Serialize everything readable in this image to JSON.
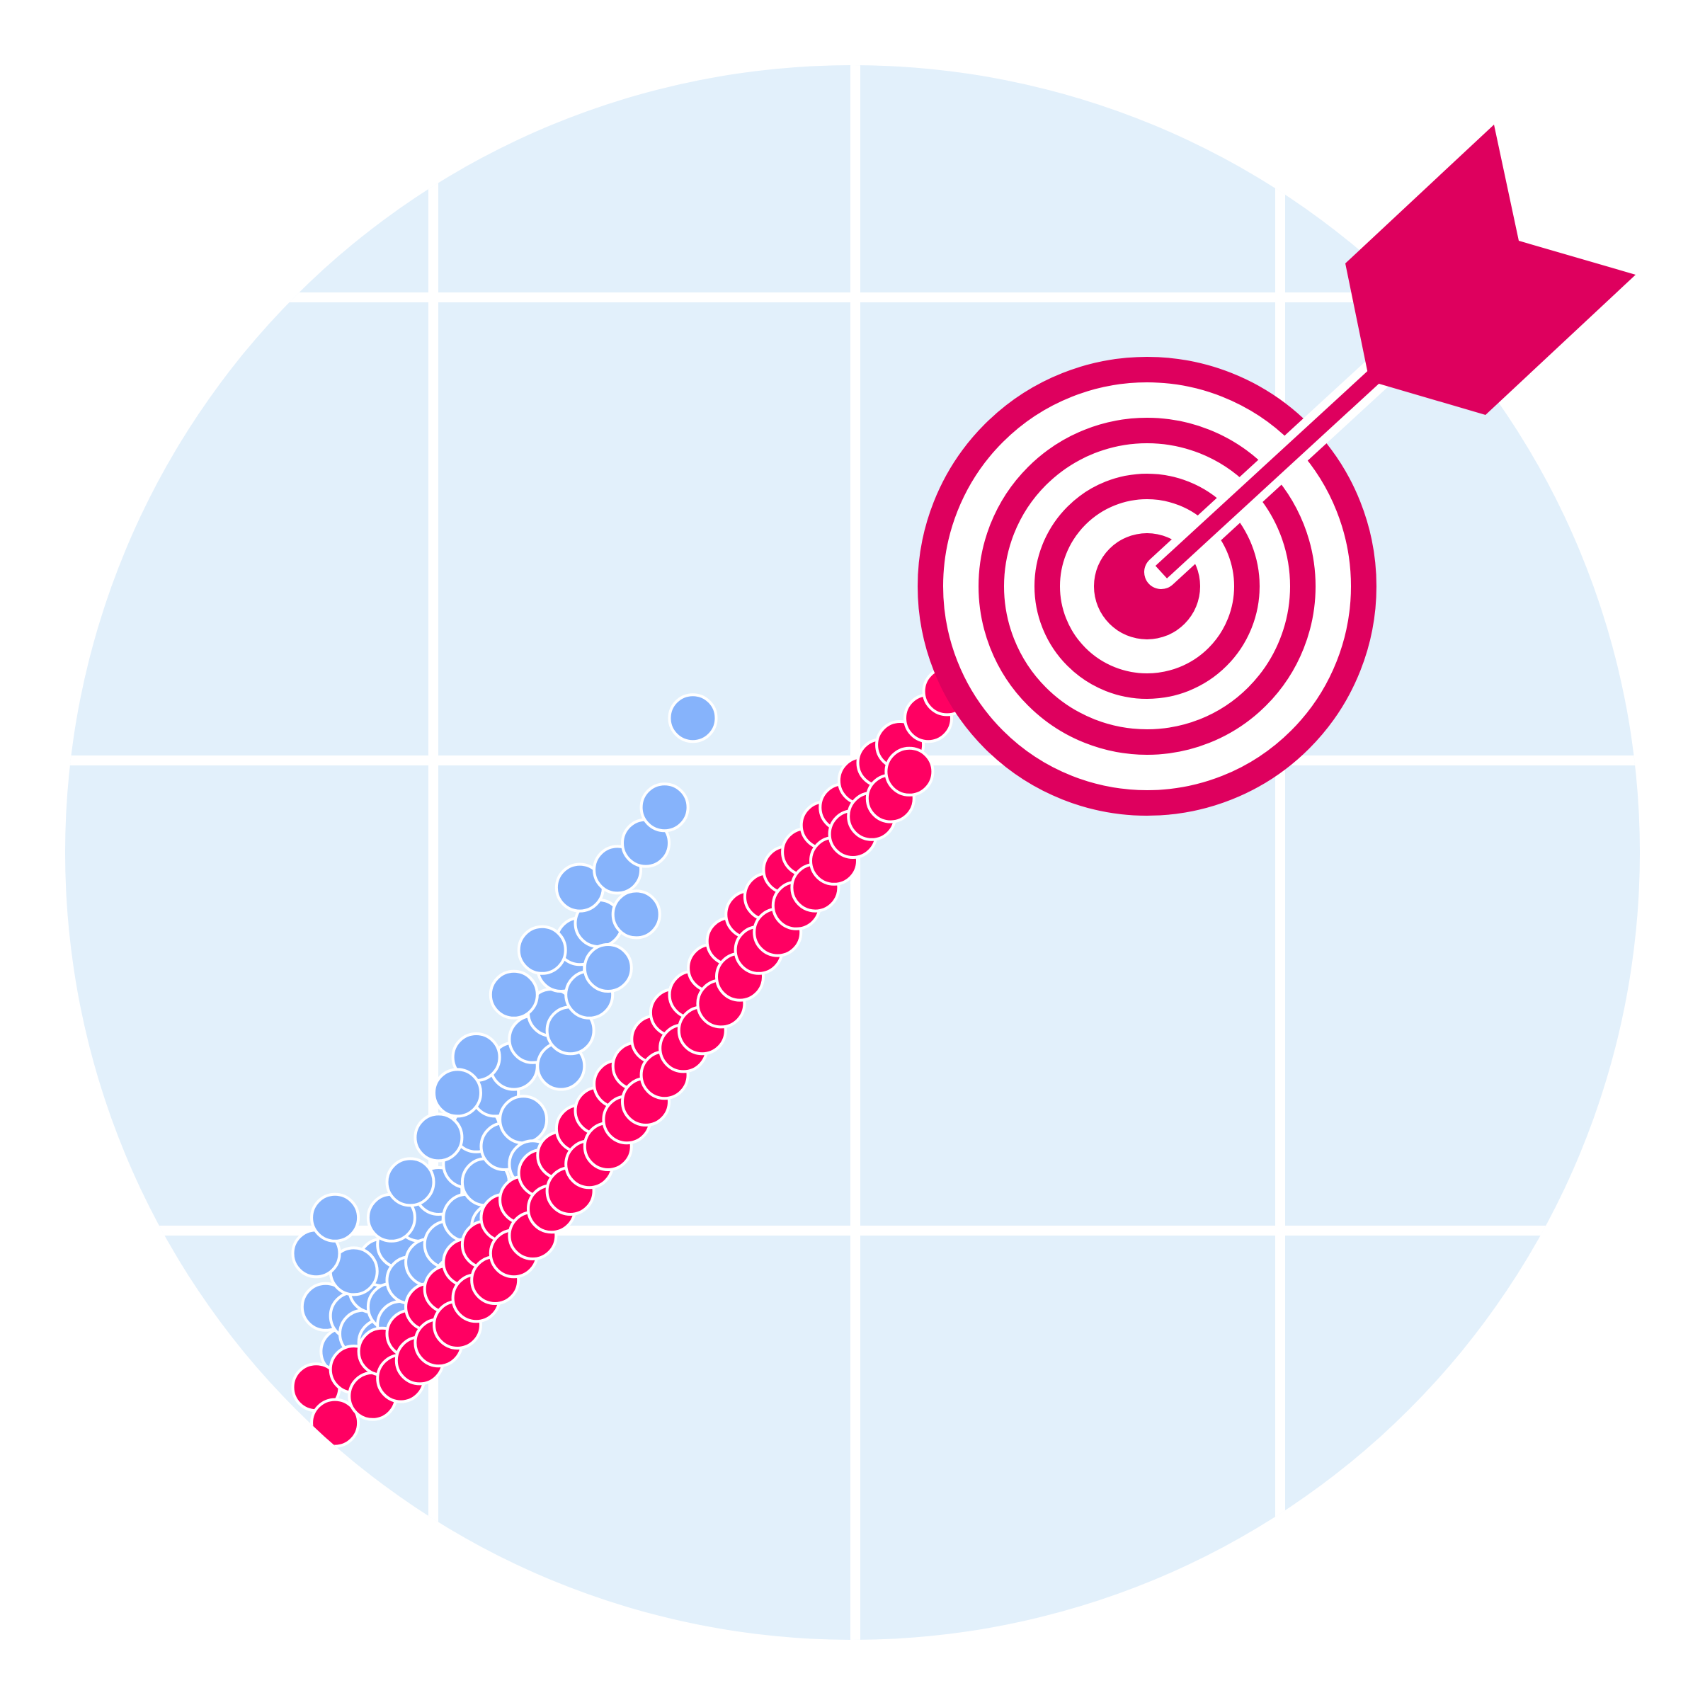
{
  "colors": {
    "background": "#ffffff",
    "disc_fill": "#e2f0fb",
    "grid_line": "#ffffff",
    "series_a_point": "#86b3fb",
    "series_b_point": "#ff0062",
    "target": "#de005e",
    "point_outline": "#ffffff"
  },
  "icons": {
    "target": "target-icon",
    "arrow": "arrow-icon"
  },
  "chart_data": {
    "type": "scatter",
    "grid": true,
    "series": [
      {
        "color": "#86b3fb",
        "points": [
          [
            0.06,
            0.17
          ],
          [
            0.08,
            0.12
          ],
          [
            0.09,
            0.16
          ],
          [
            0.1,
            0.14
          ],
          [
            0.11,
            0.19
          ],
          [
            0.12,
            0.13
          ],
          [
            0.12,
            0.22
          ],
          [
            0.13,
            0.17
          ],
          [
            0.14,
            0.24
          ],
          [
            0.14,
            0.15
          ],
          [
            0.15,
            0.2
          ],
          [
            0.16,
            0.27
          ],
          [
            0.17,
            0.22
          ],
          [
            0.17,
            0.17
          ],
          [
            0.18,
            0.3
          ],
          [
            0.19,
            0.24
          ],
          [
            0.2,
            0.2
          ],
          [
            0.21,
            0.33
          ],
          [
            0.21,
            0.27
          ],
          [
            0.22,
            0.37
          ],
          [
            0.23,
            0.31
          ],
          [
            0.24,
            0.26
          ],
          [
            0.24,
            0.41
          ],
          [
            0.25,
            0.35
          ],
          [
            0.26,
            0.44
          ],
          [
            0.27,
            0.38
          ],
          [
            0.28,
            0.47
          ],
          [
            0.28,
            0.33
          ],
          [
            0.3,
            0.5
          ],
          [
            0.31,
            0.44
          ],
          [
            0.31,
            0.55
          ],
          [
            0.32,
            0.48
          ],
          [
            0.33,
            0.58
          ],
          [
            0.34,
            0.52
          ],
          [
            0.35,
            0.6
          ],
          [
            0.36,
            0.55
          ],
          [
            0.22,
            0.45
          ],
          [
            0.26,
            0.52
          ],
          [
            0.29,
            0.57
          ],
          [
            0.33,
            0.64
          ],
          [
            0.37,
            0.66
          ],
          [
            0.39,
            0.61
          ],
          [
            0.4,
            0.69
          ],
          [
            0.09,
            0.21
          ],
          [
            0.13,
            0.27
          ],
          [
            0.18,
            0.36
          ],
          [
            0.2,
            0.41
          ],
          [
            0.15,
            0.31
          ],
          [
            0.05,
            0.23
          ],
          [
            0.07,
            0.27
          ],
          [
            0.42,
            0.73
          ],
          [
            0.45,
            0.83
          ]
        ]
      },
      {
        "color": "#ff0062",
        "points": [
          [
            0.05,
            0.08
          ],
          [
            0.07,
            0.04
          ],
          [
            0.09,
            0.1
          ],
          [
            0.11,
            0.07
          ],
          [
            0.12,
            0.12
          ],
          [
            0.14,
            0.09
          ],
          [
            0.15,
            0.14
          ],
          [
            0.16,
            0.11
          ],
          [
            0.17,
            0.17
          ],
          [
            0.18,
            0.13
          ],
          [
            0.19,
            0.19
          ],
          [
            0.2,
            0.15
          ],
          [
            0.21,
            0.22
          ],
          [
            0.22,
            0.18
          ],
          [
            0.23,
            0.24
          ],
          [
            0.24,
            0.2
          ],
          [
            0.25,
            0.27
          ],
          [
            0.26,
            0.23
          ],
          [
            0.27,
            0.29
          ],
          [
            0.28,
            0.25
          ],
          [
            0.29,
            0.32
          ],
          [
            0.3,
            0.28
          ],
          [
            0.31,
            0.34
          ],
          [
            0.32,
            0.3
          ],
          [
            0.33,
            0.37
          ],
          [
            0.34,
            0.33
          ],
          [
            0.35,
            0.39
          ],
          [
            0.36,
            0.35
          ],
          [
            0.37,
            0.42
          ],
          [
            0.38,
            0.38
          ],
          [
            0.39,
            0.44
          ],
          [
            0.4,
            0.4
          ],
          [
            0.41,
            0.47
          ],
          [
            0.42,
            0.43
          ],
          [
            0.43,
            0.5
          ],
          [
            0.44,
            0.46
          ],
          [
            0.45,
            0.52
          ],
          [
            0.46,
            0.48
          ],
          [
            0.47,
            0.55
          ],
          [
            0.48,
            0.51
          ],
          [
            0.49,
            0.58
          ],
          [
            0.5,
            0.54
          ],
          [
            0.51,
            0.61
          ],
          [
            0.52,
            0.57
          ],
          [
            0.53,
            0.63
          ],
          [
            0.54,
            0.59
          ],
          [
            0.55,
            0.66
          ],
          [
            0.56,
            0.62
          ],
          [
            0.57,
            0.68
          ],
          [
            0.58,
            0.64
          ],
          [
            0.59,
            0.71
          ],
          [
            0.6,
            0.67
          ],
          [
            0.61,
            0.73
          ],
          [
            0.62,
            0.7
          ],
          [
            0.63,
            0.76
          ],
          [
            0.64,
            0.72
          ],
          [
            0.65,
            0.78
          ],
          [
            0.66,
            0.74
          ],
          [
            0.67,
            0.8
          ],
          [
            0.68,
            0.77
          ],
          [
            0.7,
            0.83
          ],
          [
            0.72,
            0.86
          ],
          [
            0.74,
            0.89
          ],
          [
            0.76,
            0.92
          ],
          [
            0.78,
            0.95
          ]
        ]
      }
    ]
  }
}
